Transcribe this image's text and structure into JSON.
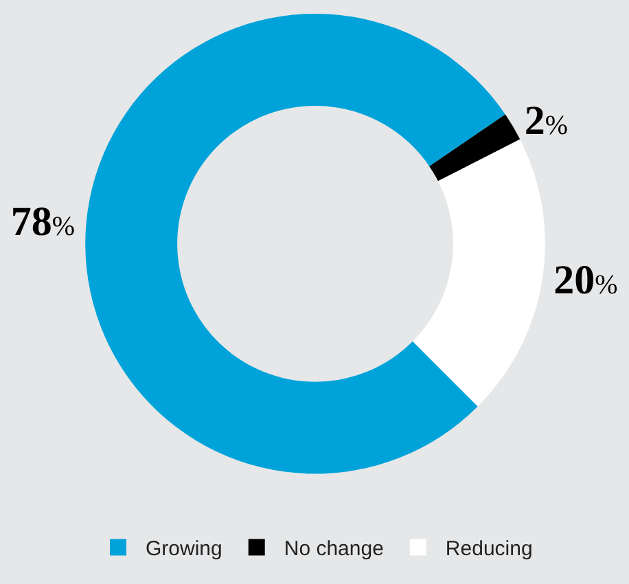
{
  "chart_data": {
    "type": "donut",
    "categories": [
      "Growing",
      "No change",
      "Reducing"
    ],
    "values": [
      78,
      2,
      20
    ],
    "value_labels": [
      "78%",
      "2%",
      "20%"
    ],
    "colors": [
      "#00a3d9",
      "#000000",
      "#ffffff"
    ],
    "legend": "bottom"
  }
}
